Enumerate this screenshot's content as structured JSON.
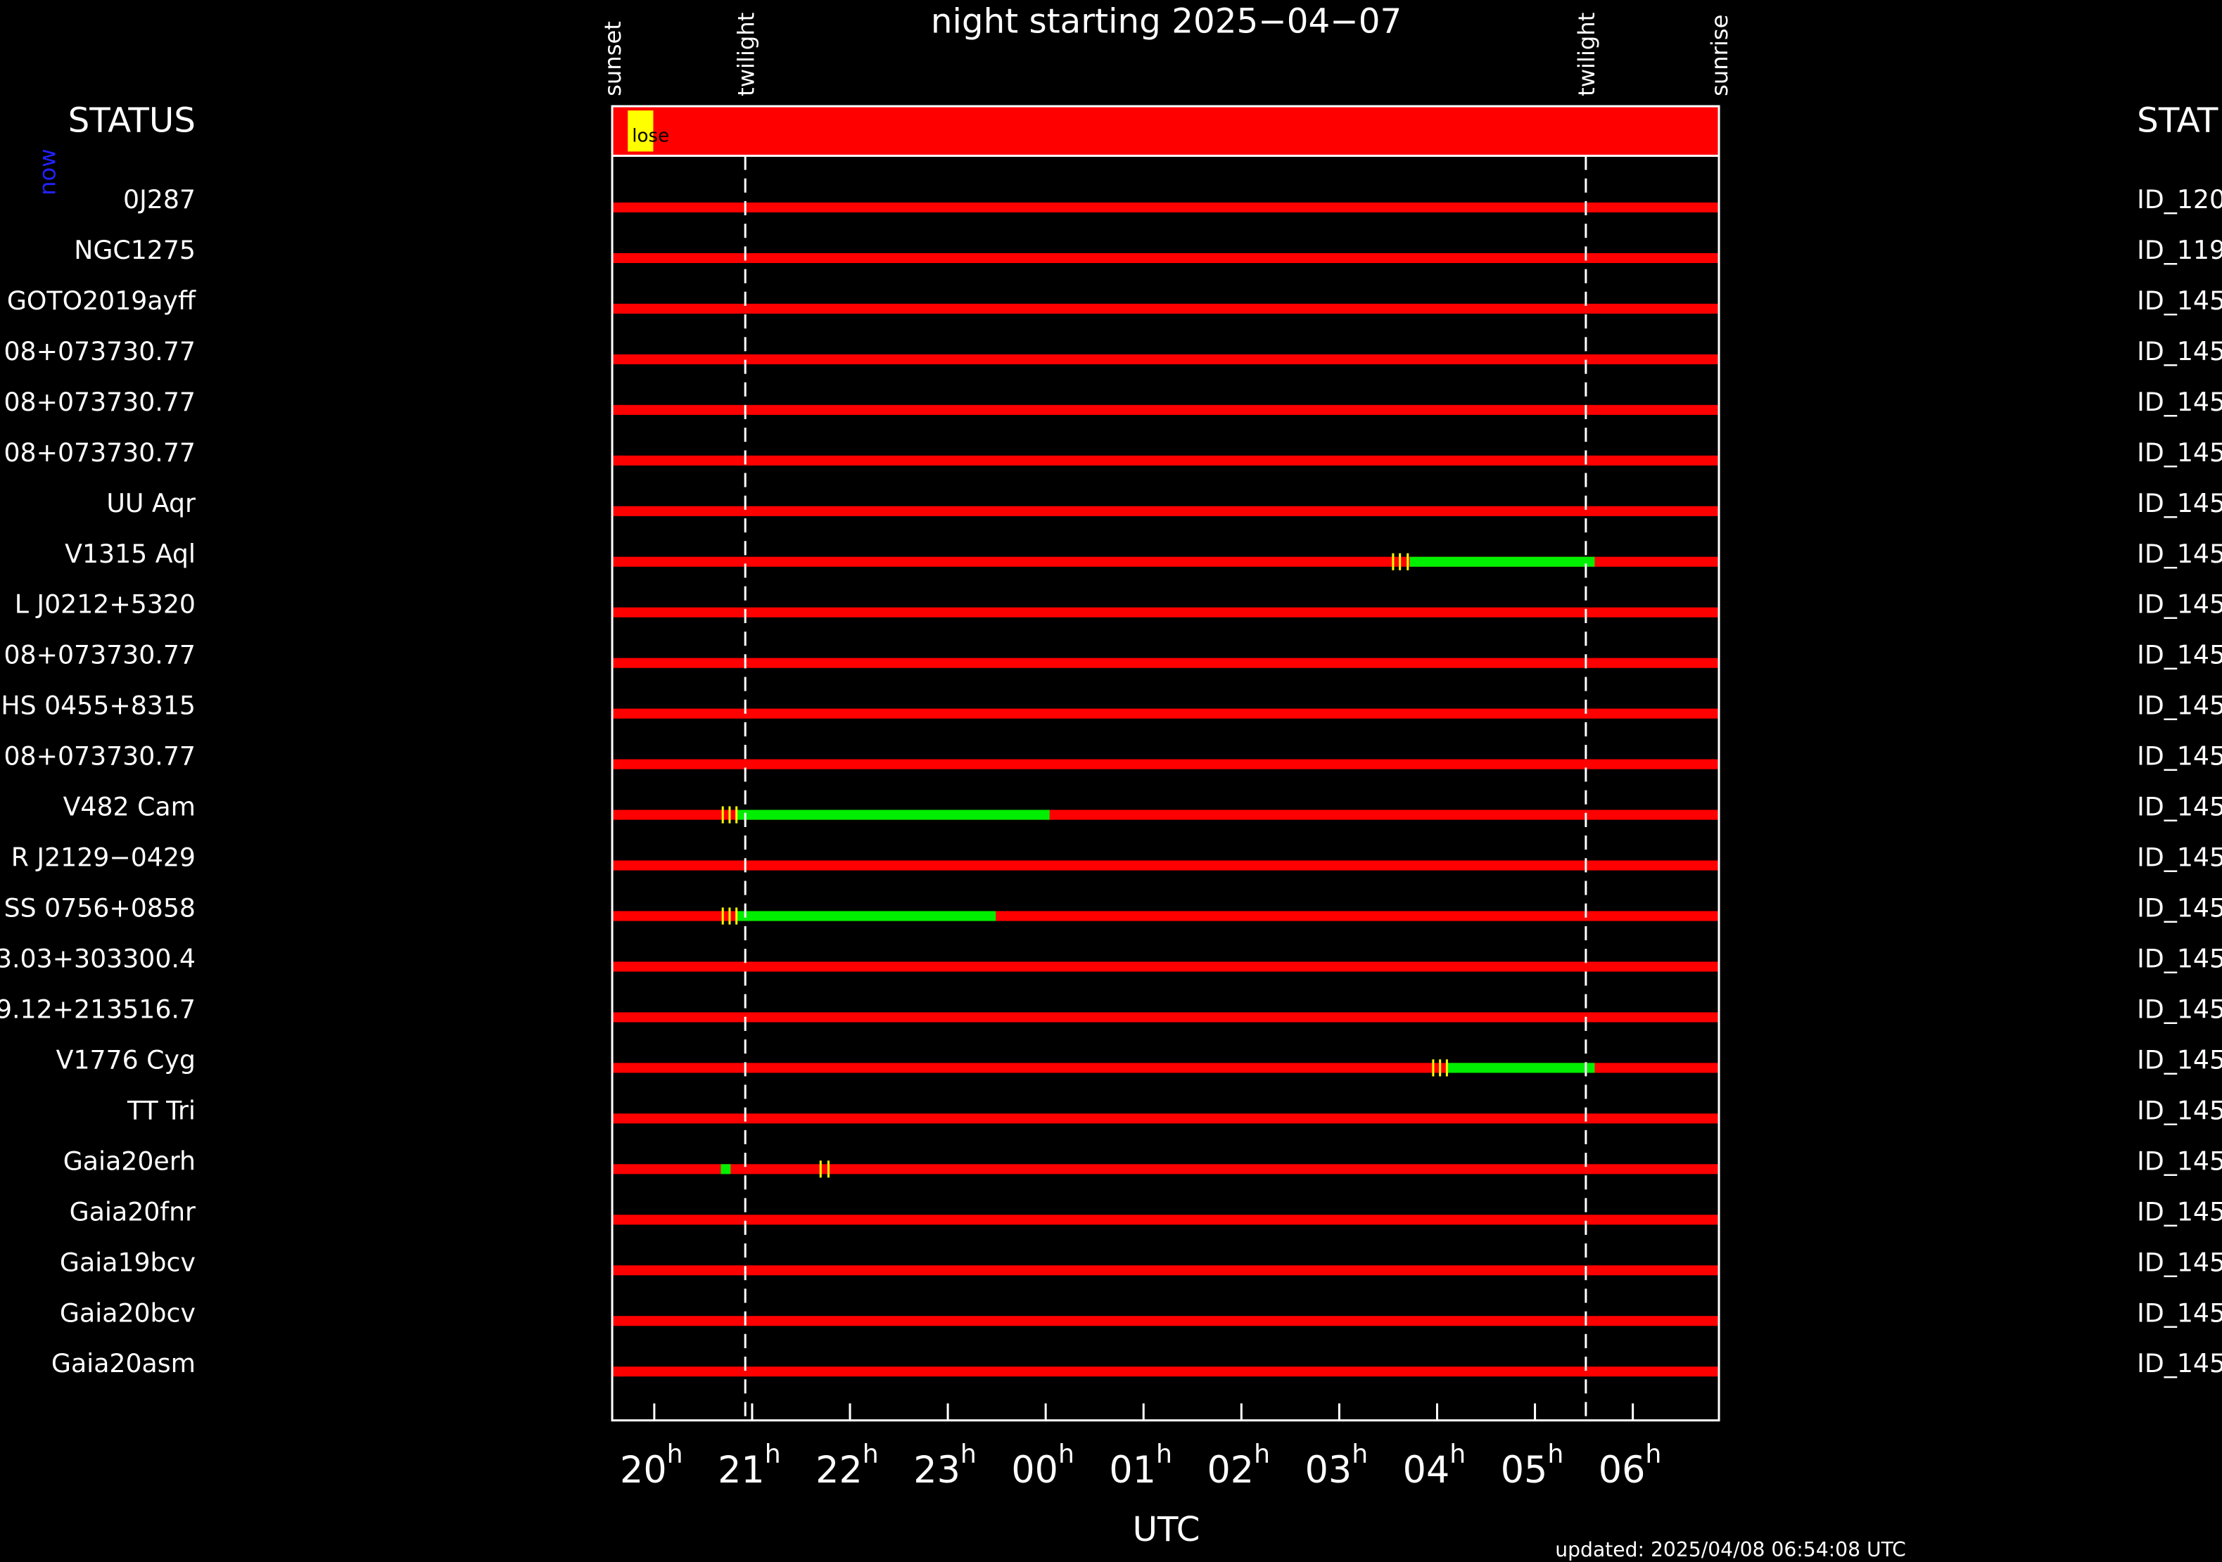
{
  "chart_data": {
    "type": "timeline",
    "title": "night starting 2025−04−07",
    "xlabel": "UTC",
    "left_header": "STATUS",
    "right_header": "STAT",
    "now_label": "now",
    "status_note": "lose",
    "footer": "updated: 2025/04/08 06:54:08 UTC",
    "xlim": [
      19.57,
      30.88
    ],
    "xticks": [
      {
        "value": 20,
        "label": "20h"
      },
      {
        "value": 21,
        "label": "21h"
      },
      {
        "value": 22,
        "label": "22h"
      },
      {
        "value": 23,
        "label": "23h"
      },
      {
        "value": 24,
        "label": "00h"
      },
      {
        "value": 25,
        "label": "01h"
      },
      {
        "value": 26,
        "label": "02h"
      },
      {
        "value": 27,
        "label": "03h"
      },
      {
        "value": 28,
        "label": "04h"
      },
      {
        "value": 29,
        "label": "05h"
      },
      {
        "value": 30,
        "label": "06h"
      }
    ],
    "events": [
      {
        "label": "sunset",
        "x": 19.57
      },
      {
        "label": "twilight",
        "x": 20.93
      },
      {
        "label": "twilight",
        "x": 29.52
      },
      {
        "label": "sunrise",
        "x": 30.88
      }
    ],
    "bar_color": "#ff0000",
    "window_color": "#00ee00",
    "mark_color": "#ffff00",
    "rows": [
      {
        "name": "0J287",
        "id": "ID_120",
        "windows": [],
        "marks": []
      },
      {
        "name": "NGC1275",
        "id": "ID_119",
        "windows": [],
        "marks": []
      },
      {
        "name": "GOTO2019ayff",
        "id": "ID_145",
        "windows": [],
        "marks": []
      },
      {
        "name": "08+073730.77",
        "id": "ID_145",
        "windows": [],
        "marks": []
      },
      {
        "name": "08+073730.77",
        "id": "ID_145",
        "windows": [],
        "marks": []
      },
      {
        "name": "08+073730.77",
        "id": "ID_145",
        "windows": [],
        "marks": []
      },
      {
        "name": "UU Aqr",
        "id": "ID_145",
        "windows": [],
        "marks": []
      },
      {
        "name": "V1315 Aql",
        "id": "ID_145",
        "windows": [
          [
            27.72,
            29.61
          ]
        ],
        "marks": [
          27.55,
          27.62,
          27.7
        ]
      },
      {
        "name": "L J0212+5320",
        "id": "ID_145",
        "windows": [],
        "marks": []
      },
      {
        "name": "08+073730.77",
        "id": "ID_145",
        "windows": [],
        "marks": []
      },
      {
        "name": "HS 0455+8315",
        "id": "ID_145",
        "windows": [],
        "marks": []
      },
      {
        "name": "08+073730.77",
        "id": "ID_145",
        "windows": [],
        "marks": []
      },
      {
        "name": "V482 Cam",
        "id": "ID_145",
        "windows": [
          [
            20.84,
            24.04
          ]
        ],
        "marks": [
          20.7,
          20.77,
          20.84
        ]
      },
      {
        "name": "R J2129−0429",
        "id": "ID_145",
        "windows": [],
        "marks": []
      },
      {
        "name": "SS 0756+0858",
        "id": "ID_145",
        "windows": [
          [
            20.84,
            23.49
          ]
        ],
        "marks": [
          20.7,
          20.77,
          20.84
        ]
      },
      {
        "name": "3.03+303300.4",
        "id": "ID_145",
        "windows": [],
        "marks": []
      },
      {
        "name": "9.12+213516.7",
        "id": "ID_145",
        "windows": [],
        "marks": []
      },
      {
        "name": "V1776 Cyg",
        "id": "ID_145",
        "windows": [
          [
            28.1,
            29.61
          ]
        ],
        "marks": [
          27.96,
          28.03,
          28.1
        ]
      },
      {
        "name": "TT Tri",
        "id": "ID_145",
        "windows": [],
        "marks": []
      },
      {
        "name": "Gaia20erh",
        "id": "ID_145",
        "windows": [
          [
            20.68,
            20.78
          ]
        ],
        "marks": [
          21.7,
          21.78
        ]
      },
      {
        "name": "Gaia20fnr",
        "id": "ID_145",
        "windows": [],
        "marks": []
      },
      {
        "name": "Gaia19bcv",
        "id": "ID_145",
        "windows": [],
        "marks": []
      },
      {
        "name": "Gaia20bcv",
        "id": "ID_145",
        "windows": [],
        "marks": []
      },
      {
        "name": "Gaia20asm",
        "id": "ID_145",
        "windows": [],
        "marks": []
      }
    ]
  }
}
